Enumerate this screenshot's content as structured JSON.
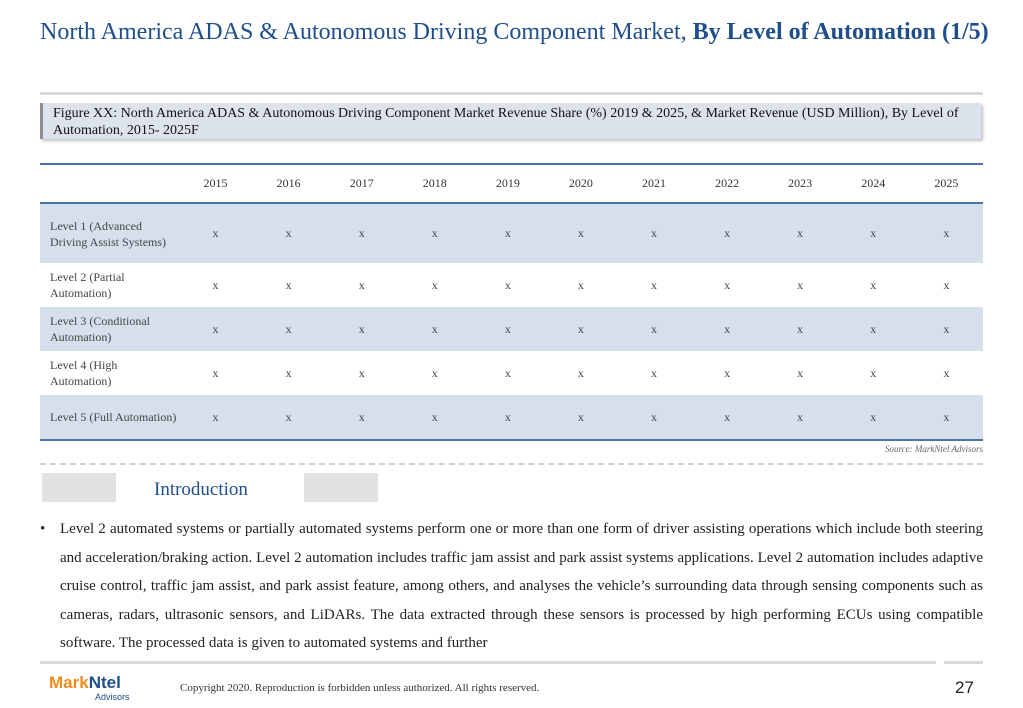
{
  "title": {
    "regular": "North America ADAS & Autonomous Driving Component Market, ",
    "bold": "By Level of Automation (1/5)"
  },
  "figure_caption": "Figure XX: North America ADAS & Autonomous Driving Component Market Revenue Share (%) 2019 & 2025, & Market Revenue (USD Million), By Level of Automation, 2015- 2025F",
  "table": {
    "columns": [
      "2015",
      "2016",
      "2017",
      "2018",
      "2019",
      "2020",
      "2021",
      "2022",
      "2023",
      "2024",
      "2025"
    ],
    "rows": [
      {
        "label": "Level 1 (Advanced Driving Assist Systems)",
        "values": [
          "x",
          "x",
          "x",
          "x",
          "x",
          "x",
          "x",
          "x",
          "x",
          "x",
          "x"
        ]
      },
      {
        "label": "Level 2 (Partial Automation)",
        "values": [
          "x",
          "x",
          "x",
          "x",
          "x",
          "x",
          "x",
          "x",
          "x",
          "x",
          "x"
        ]
      },
      {
        "label": "Level 3 (Conditional Automation)",
        "values": [
          "x",
          "x",
          "x",
          "x",
          "x",
          "x",
          "x",
          "x",
          "x",
          "x",
          "x"
        ]
      },
      {
        "label": "Level 4 (High Automation)",
        "values": [
          "x",
          "x",
          "x",
          "x",
          "x",
          "x",
          "x",
          "x",
          "x",
          "x",
          "x"
        ]
      },
      {
        "label": "Level 5 (Full Automation)",
        "values": [
          "x",
          "x",
          "x",
          "x",
          "x",
          "x",
          "x",
          "x",
          "x",
          "x",
          "x"
        ]
      }
    ]
  },
  "source": "Source: MarkNtel Advisors",
  "section_title": "Introduction",
  "bullet_text": "Level 2 automated systems or partially automated systems perform one or more than one form of driver assisting operations which include both steering and acceleration/braking action. Level 2 automation includes traffic jam assist and park assist systems applications. Level 2 automation includes adaptive cruise control, traffic jam assist, and park assist feature, among others, and analyses the vehicle’s surrounding data through sensing components such as cameras, radars, ultrasonic sensors, and LiDARs. The data extracted through these sensors is processed by high performing ECUs using compatible software. The processed data is given to automated systems and further",
  "logo": {
    "brand_a": "Mark",
    "brand_b": "Ntel",
    "sub": "Advisors"
  },
  "colors": {
    "title": "#1f4e8c",
    "logo_orange": "#f28a1a",
    "logo_blue": "#1f4e8c",
    "table_rule": "#4a74a8",
    "row_shade": "#d6e0ec"
  },
  "copyright": "Copyright 2020. Reproduction is forbidden unless authorized. All rights reserved.",
  "page_number": "27"
}
